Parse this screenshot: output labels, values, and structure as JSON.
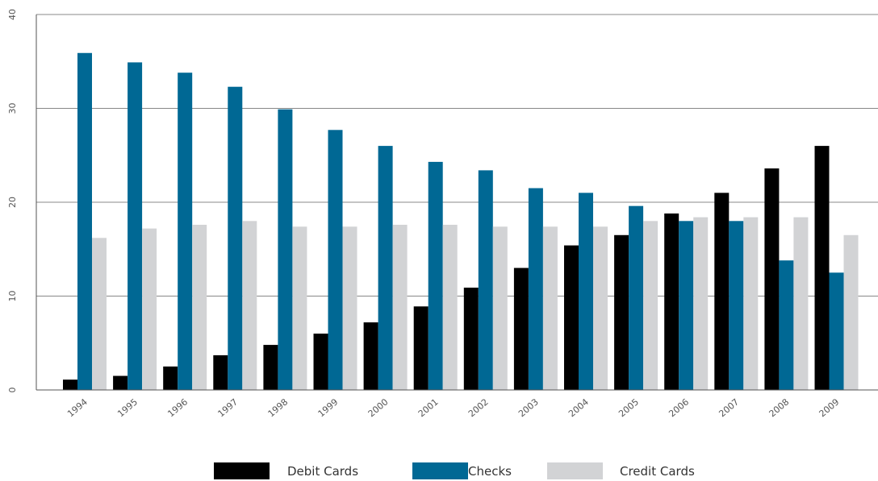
{
  "chart_data": {
    "type": "bar",
    "categories": [
      "1994",
      "1995",
      "1996",
      "1997",
      "1998",
      "1999",
      "2000",
      "2001",
      "2002",
      "2003",
      "2004",
      "2005",
      "2006",
      "2007",
      "2008",
      "2009"
    ],
    "series": [
      {
        "name": "Debit Cards",
        "color": "#000000",
        "values": [
          1.1,
          1.5,
          2.5,
          3.7,
          4.8,
          6.0,
          7.2,
          8.9,
          10.9,
          13.0,
          15.4,
          16.5,
          18.8,
          21.0,
          23.6,
          26.0
        ]
      },
      {
        "name": "Checks",
        "color": "#006894",
        "values": [
          35.9,
          34.9,
          33.8,
          32.3,
          29.9,
          27.7,
          26.0,
          24.3,
          23.4,
          21.5,
          21.0,
          19.6,
          18.0,
          18.0,
          13.8,
          12.5
        ]
      },
      {
        "name": "Credit Cards",
        "color": "#d2d3d5",
        "values": [
          16.2,
          17.2,
          17.6,
          18.0,
          17.4,
          17.4,
          17.6,
          17.6,
          17.4,
          17.4,
          17.4,
          18.0,
          18.4,
          18.4,
          18.4,
          16.5
        ]
      }
    ],
    "yticks": [
      0,
      10,
      20,
      30,
      40
    ],
    "ylim": [
      0,
      40
    ],
    "grid": true,
    "legend_position": "bottom"
  }
}
